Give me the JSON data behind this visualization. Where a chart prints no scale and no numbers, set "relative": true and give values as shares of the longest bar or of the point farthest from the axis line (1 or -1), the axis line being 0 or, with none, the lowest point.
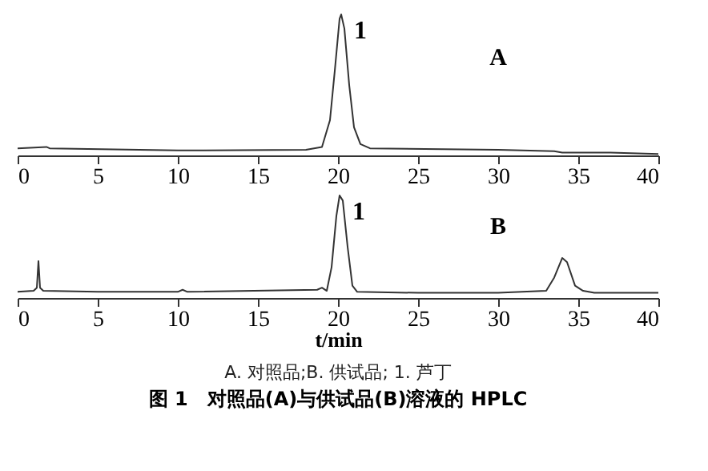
{
  "chart_data": [
    {
      "type": "line",
      "relative": true,
      "xlim": [
        0,
        40
      ],
      "xticks": [
        0,
        5,
        10,
        15,
        20,
        25,
        30,
        35,
        40
      ],
      "grid": false,
      "marker": "none",
      "line_style": "solid",
      "series": [
        {
          "color": "#333333",
          "x": [
            0,
            1.8,
            2,
            10,
            18,
            19,
            19.5,
            19.8,
            20.1,
            20.2,
            20.4,
            20.7,
            21,
            21.4,
            22,
            30,
            33.5,
            34,
            37,
            40
          ],
          "values": [
            0.05,
            0.06,
            0.05,
            0.035,
            0.04,
            0.06,
            0.25,
            0.6,
            0.97,
            1,
            0.9,
            0.5,
            0.2,
            0.08,
            0.05,
            0.04,
            0.03,
            0.02,
            0.02,
            0.01
          ]
        }
      ],
      "annotations": [
        "A",
        {
          "text": "1",
          "x": 20.2,
          "y": 1
        }
      ]
    },
    {
      "type": "line",
      "relative": true,
      "xlim": [
        0,
        40
      ],
      "xticks": [
        0,
        5,
        10,
        15,
        20,
        25,
        30,
        35,
        40
      ],
      "xlabel": "t/min",
      "grid": false,
      "marker": "none",
      "line_style": "solid",
      "series": [
        {
          "color": "#333333",
          "x": [
            0,
            1,
            1.2,
            1.3,
            1.4,
            1.6,
            5,
            10,
            10.3,
            10.6,
            18.7,
            19,
            19.3,
            19.6,
            19.9,
            20.1,
            20.3,
            20.6,
            20.9,
            21.2,
            25,
            30,
            33,
            33.5,
            34,
            34.3,
            34.8,
            35.3,
            36,
            40
          ],
          "values": [
            0.06,
            0.07,
            0.1,
            0.36,
            0.1,
            0.07,
            0.06,
            0.06,
            0.08,
            0.06,
            0.08,
            0.1,
            0.07,
            0.3,
            0.8,
            1,
            0.95,
            0.5,
            0.12,
            0.06,
            0.05,
            0.05,
            0.07,
            0.2,
            0.39,
            0.35,
            0.12,
            0.07,
            0.05,
            0.05
          ]
        }
      ],
      "annotations": [
        "B",
        {
          "text": "1",
          "x": 20.1,
          "y": 1
        },
        "A. 对照品;B. 供试品; 1. 芦丁",
        "图 1　对照品(A)与供试品(B)溶液的 HPLC"
      ]
    }
  ]
}
